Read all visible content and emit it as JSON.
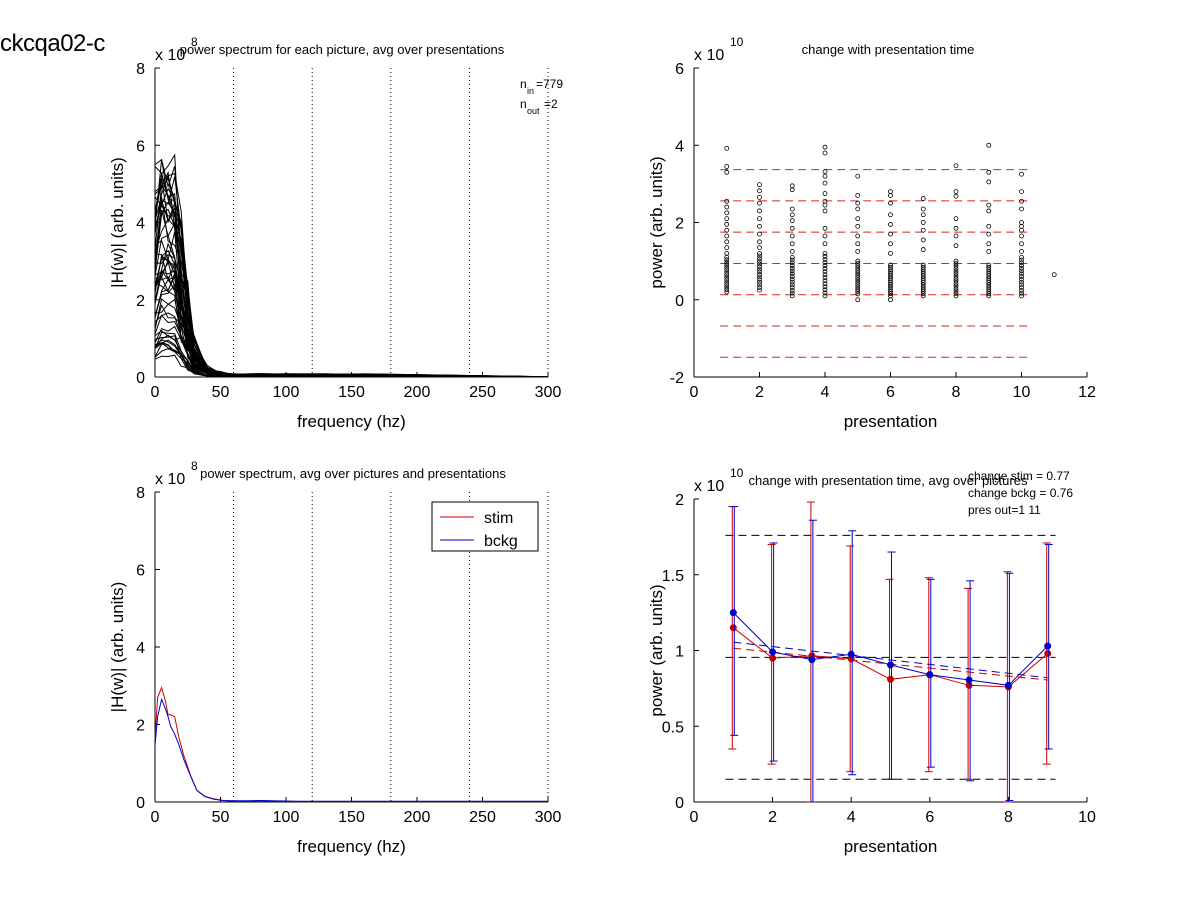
{
  "figure_label": "ckcqa02-c",
  "chart_data": [
    {
      "type": "line",
      "title": "power spectrum for each picture, avg over presentations",
      "xlabel": "frequency (hz)",
      "ylabel": "|H(w)| (arb. units)",
      "y_exponent": "x 10",
      "y_exponent_power": "8",
      "xlim": [
        0,
        300
      ],
      "ylim": [
        0,
        8
      ],
      "xticks": [
        0,
        50,
        100,
        150,
        200,
        250,
        300
      ],
      "xtick_labels": [
        "0",
        "50",
        "100",
        "150",
        "200",
        "250",
        "300"
      ],
      "yticks": [
        0,
        2,
        4,
        6,
        8
      ],
      "ytick_labels": [
        "0",
        "2",
        "4",
        "6",
        "8"
      ],
      "vlines_dotted": [
        60,
        120,
        180,
        240,
        300
      ],
      "n_in_label": "n",
      "n_in_sub": "in",
      "n_in_value": "=779",
      "n_out_label": "n",
      "n_out_sub": "out",
      "n_out_value": "=2",
      "line_color": "#000000",
      "description": "",
      "series_freq": [
        0,
        5,
        10,
        15,
        20,
        25,
        30,
        40,
        50,
        60,
        80,
        100,
        130,
        160,
        300
      ],
      "series_envelope": {
        "count": 55,
        "peak_range": [
          0.4,
          6.3
        ],
        "tail_level": [
          0.02,
          0.09
        ]
      }
    },
    {
      "type": "scatter",
      "title": "change with presentation time",
      "xlabel": "presentation",
      "ylabel": "power (arb. units)",
      "y_exponent": "x 10",
      "y_exponent_power": "10",
      "xlim": [
        0,
        12
      ],
      "ylim": [
        -2,
        6
      ],
      "xticks": [
        0,
        2,
        4,
        6,
        8,
        10,
        12
      ],
      "xtick_labels": [
        "0",
        "2",
        "4",
        "6",
        "8",
        "10",
        "12"
      ],
      "yticks": [
        -2,
        0,
        2,
        4,
        6
      ],
      "ytick_labels": [
        "-2",
        "0",
        "2",
        "4",
        "6"
      ],
      "hlines_dashed": [
        3.37,
        2.56,
        1.75,
        0.94,
        0.13,
        -0.68,
        -1.49
      ],
      "hline_color": "#dd2222",
      "marker_color": "#000000",
      "dense_band": {
        "x": [
          1,
          2,
          3,
          4,
          5,
          6,
          7,
          8,
          9,
          10
        ],
        "low": [
          0.2,
          0.25,
          0.1,
          0.1,
          0.15,
          0.1,
          0.1,
          0.1,
          0.1,
          0.1
        ],
        "high": [
          1.1,
          1.2,
          1.1,
          1.2,
          1.0,
          0.9,
          0.9,
          1.0,
          0.9,
          1.1
        ]
      },
      "points": [
        {
          "x": 1,
          "y": 3.92
        },
        {
          "x": 1,
          "y": 3.45
        },
        {
          "x": 1,
          "y": 3.3
        },
        {
          "x": 1,
          "y": 2.55
        },
        {
          "x": 1,
          "y": 2.4
        },
        {
          "x": 1,
          "y": 2.25
        },
        {
          "x": 1,
          "y": 2.1
        },
        {
          "x": 1,
          "y": 1.95
        },
        {
          "x": 1,
          "y": 1.8
        },
        {
          "x": 1,
          "y": 1.65
        },
        {
          "x": 1,
          "y": 1.5
        },
        {
          "x": 1,
          "y": 1.35
        },
        {
          "x": 1,
          "y": 1.2
        },
        {
          "x": 2,
          "y": 2.98
        },
        {
          "x": 2,
          "y": 2.82
        },
        {
          "x": 2,
          "y": 2.65
        },
        {
          "x": 2,
          "y": 2.5
        },
        {
          "x": 2,
          "y": 2.3
        },
        {
          "x": 2,
          "y": 2.1
        },
        {
          "x": 2,
          "y": 1.9
        },
        {
          "x": 2,
          "y": 1.7
        },
        {
          "x": 2,
          "y": 1.5
        },
        {
          "x": 2,
          "y": 1.35
        },
        {
          "x": 3,
          "y": 2.95
        },
        {
          "x": 3,
          "y": 2.85
        },
        {
          "x": 3,
          "y": 2.35
        },
        {
          "x": 3,
          "y": 2.2
        },
        {
          "x": 3,
          "y": 2.05
        },
        {
          "x": 3,
          "y": 1.85
        },
        {
          "x": 3,
          "y": 1.65
        },
        {
          "x": 3,
          "y": 1.45
        },
        {
          "x": 3,
          "y": 1.25
        },
        {
          "x": 4,
          "y": 3.95
        },
        {
          "x": 4,
          "y": 3.8
        },
        {
          "x": 4,
          "y": 3.32
        },
        {
          "x": 4,
          "y": 3.2
        },
        {
          "x": 4,
          "y": 3.02
        },
        {
          "x": 4,
          "y": 2.75
        },
        {
          "x": 4,
          "y": 2.55
        },
        {
          "x": 4,
          "y": 2.45
        },
        {
          "x": 4,
          "y": 2.3
        },
        {
          "x": 4,
          "y": 1.85
        },
        {
          "x": 4,
          "y": 1.65
        },
        {
          "x": 4,
          "y": 1.45
        },
        {
          "x": 5,
          "y": 3.2
        },
        {
          "x": 5,
          "y": 2.7
        },
        {
          "x": 5,
          "y": 2.5
        },
        {
          "x": 5,
          "y": 2.35
        },
        {
          "x": 5,
          "y": 2.1
        },
        {
          "x": 5,
          "y": 1.9
        },
        {
          "x": 5,
          "y": 1.65
        },
        {
          "x": 5,
          "y": 1.45
        },
        {
          "x": 5,
          "y": 1.25
        },
        {
          "x": 5,
          "y": 0.0
        },
        {
          "x": 6,
          "y": 2.8
        },
        {
          "x": 6,
          "y": 2.7
        },
        {
          "x": 6,
          "y": 2.5
        },
        {
          "x": 6,
          "y": 2.2
        },
        {
          "x": 6,
          "y": 1.95
        },
        {
          "x": 6,
          "y": 1.7
        },
        {
          "x": 6,
          "y": 1.45
        },
        {
          "x": 6,
          "y": 1.2
        },
        {
          "x": 6,
          "y": 0.0
        },
        {
          "x": 7,
          "y": 2.62
        },
        {
          "x": 7,
          "y": 2.35
        },
        {
          "x": 7,
          "y": 2.2
        },
        {
          "x": 7,
          "y": 2.0
        },
        {
          "x": 7,
          "y": 1.8
        },
        {
          "x": 7,
          "y": 1.55
        },
        {
          "x": 7,
          "y": 1.3
        },
        {
          "x": 8,
          "y": 3.47
        },
        {
          "x": 8,
          "y": 2.8
        },
        {
          "x": 8,
          "y": 2.68
        },
        {
          "x": 8,
          "y": 2.1
        },
        {
          "x": 8,
          "y": 1.85
        },
        {
          "x": 8,
          "y": 1.65
        },
        {
          "x": 8,
          "y": 1.4
        },
        {
          "x": 9,
          "y": 4.0
        },
        {
          "x": 9,
          "y": 3.3
        },
        {
          "x": 9,
          "y": 3.05
        },
        {
          "x": 9,
          "y": 2.45
        },
        {
          "x": 9,
          "y": 2.3
        },
        {
          "x": 9,
          "y": 1.9
        },
        {
          "x": 9,
          "y": 1.7
        },
        {
          "x": 9,
          "y": 1.45
        },
        {
          "x": 9,
          "y": 1.25
        },
        {
          "x": 10,
          "y": 3.25
        },
        {
          "x": 10,
          "y": 2.8
        },
        {
          "x": 10,
          "y": 2.55
        },
        {
          "x": 10,
          "y": 2.35
        },
        {
          "x": 10,
          "y": 2.0
        },
        {
          "x": 10,
          "y": 1.9
        },
        {
          "x": 10,
          "y": 1.8
        },
        {
          "x": 10,
          "y": 1.65
        },
        {
          "x": 10,
          "y": 1.45
        },
        {
          "x": 10,
          "y": 1.25
        },
        {
          "x": 11,
          "y": 0.65
        }
      ]
    },
    {
      "type": "line",
      "title": "power spectrum, avg over pictures and presentations",
      "xlabel": "frequency (hz)",
      "ylabel": "|H(w)| (arb. units)",
      "y_exponent": "x 10",
      "y_exponent_power": "8",
      "xlim": [
        0,
        300
      ],
      "ylim": [
        0,
        8
      ],
      "xticks": [
        0,
        50,
        100,
        150,
        200,
        250,
        300
      ],
      "xtick_labels": [
        "0",
        "50",
        "100",
        "150",
        "200",
        "250",
        "300"
      ],
      "yticks": [
        0,
        2,
        4,
        6,
        8
      ],
      "ytick_labels": [
        "0",
        "2",
        "4",
        "6",
        "8"
      ],
      "vlines_dotted": [
        60,
        120,
        180,
        240,
        300
      ],
      "legend": "top-right",
      "series": [
        {
          "name": "stim",
          "color": "#cc0000",
          "x": [
            0,
            2,
            5,
            8,
            10,
            12,
            15,
            18,
            22,
            27,
            32,
            38,
            45,
            52,
            60,
            70,
            80,
            90,
            110,
            150,
            200,
            250,
            300
          ],
          "values": [
            1.6,
            2.7,
            2.95,
            2.6,
            2.25,
            2.25,
            2.2,
            1.7,
            1.2,
            0.7,
            0.3,
            0.15,
            0.08,
            0.04,
            0.02,
            0.02,
            0.03,
            0.02,
            0.01,
            0.01,
            0.01,
            0.01,
            0.01
          ]
        },
        {
          "name": "bckg",
          "color": "#0000cc",
          "x": [
            0,
            2,
            5,
            8,
            10,
            12,
            15,
            18,
            22,
            27,
            32,
            38,
            45,
            52,
            60,
            70,
            80,
            90,
            110,
            150,
            200,
            250,
            300
          ],
          "values": [
            1.45,
            2.2,
            2.65,
            2.4,
            2.2,
            1.95,
            1.75,
            1.5,
            1.1,
            0.68,
            0.3,
            0.14,
            0.07,
            0.04,
            0.03,
            0.03,
            0.04,
            0.03,
            0.02,
            0.02,
            0.02,
            0.02,
            0.02
          ]
        }
      ]
    },
    {
      "type": "line",
      "title": "change with presentation time, avg over pictures",
      "xlabel": "presentation",
      "ylabel": "power (arb. units)",
      "y_exponent": "x 10",
      "y_exponent_power": "10",
      "xlim": [
        0,
        10
      ],
      "ylim": [
        0,
        2
      ],
      "xticks": [
        0,
        2,
        4,
        6,
        8,
        10
      ],
      "xtick_labels": [
        "0",
        "2",
        "4",
        "6",
        "8",
        "10"
      ],
      "yticks": [
        0,
        0.5,
        1,
        1.5,
        2
      ],
      "ytick_labels": [
        "0",
        "0.5",
        "1",
        "1.5",
        "2"
      ],
      "annotations": [
        "change stim = 0.77",
        "change bckg = 0.76",
        "pres out=1 11"
      ],
      "hlines_dashed": [
        1.76,
        0.955,
        0.15
      ],
      "hline_color": "#000000",
      "x": [
        1,
        2,
        3,
        4,
        5,
        6,
        7,
        8,
        9
      ],
      "series": [
        {
          "name": "stim",
          "color": "#cc0000",
          "values": [
            1.15,
            0.95,
            0.965,
            0.945,
            0.81,
            0.84,
            0.77,
            0.76,
            0.98
          ],
          "err_low": [
            0.35,
            0.25,
            0.0,
            0.2,
            0.15,
            0.2,
            0.15,
            0.0,
            0.25
          ],
          "err_high": [
            1.95,
            1.7,
            1.98,
            1.69,
            1.47,
            1.48,
            1.41,
            1.52,
            1.71
          ],
          "trend": [
            1.015,
            0.805
          ]
        },
        {
          "name": "bckg",
          "color": "#0000cc",
          "values": [
            1.25,
            0.99,
            0.94,
            0.975,
            0.905,
            0.84,
            0.805,
            0.77,
            1.03
          ],
          "err_low": [
            0.44,
            0.27,
            0.0,
            0.18,
            0.15,
            0.23,
            0.14,
            0.01,
            0.35
          ],
          "err_high": [
            1.95,
            1.71,
            1.86,
            1.79,
            1.65,
            1.47,
            1.46,
            1.51,
            1.7
          ],
          "trend": [
            1.055,
            0.82
          ]
        }
      ]
    }
  ]
}
